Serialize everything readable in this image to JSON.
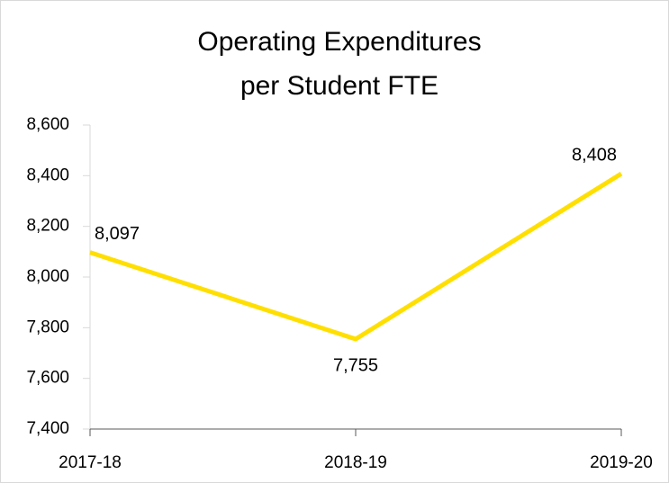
{
  "chart_data": {
    "type": "line",
    "title": [
      "Operating Expenditures",
      "per Student FTE"
    ],
    "categories": [
      "2017-18",
      "2018-19",
      "2019-20"
    ],
    "values": [
      8097,
      7755,
      8408
    ],
    "value_labels": [
      "8,097",
      "7,755",
      "8,408"
    ],
    "color": "#ffdf00",
    "ylim": [
      7400,
      8600
    ],
    "yticks": [
      {
        "value": 7400,
        "label": "7,400"
      },
      {
        "value": 7600,
        "label": "7,600"
      },
      {
        "value": 7800,
        "label": "7,800"
      },
      {
        "value": 8000,
        "label": "8,000"
      },
      {
        "value": 8200,
        "label": "8,200"
      },
      {
        "value": 8400,
        "label": "8,400"
      },
      {
        "value": 8600,
        "label": "8,600"
      }
    ]
  }
}
